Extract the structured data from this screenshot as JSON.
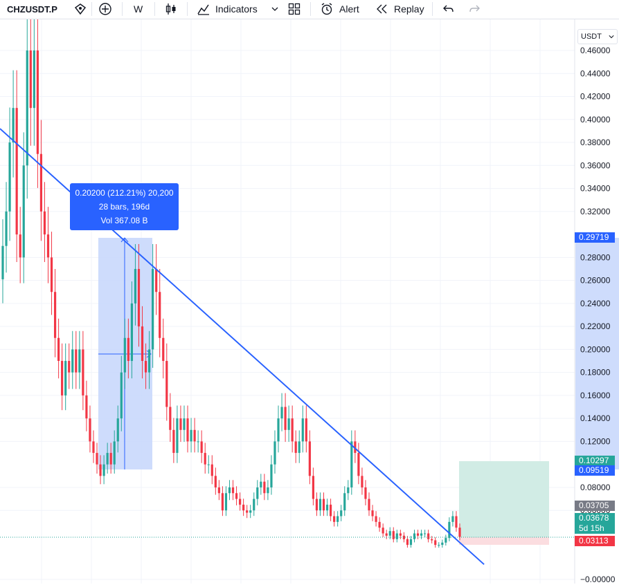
{
  "toolbar": {
    "symbol": "CHZUSDT.P",
    "interval": "W",
    "indicators_label": "Indicators",
    "alert_label": "Alert",
    "replay_label": "Replay"
  },
  "price_scale": {
    "unit": "USDT",
    "ticks": [
      "0.46000",
      "0.44000",
      "0.42000",
      "0.40000",
      "0.38000",
      "0.36000",
      "0.34000",
      "0.32000",
      "0.28000",
      "0.26000",
      "0.24000",
      "0.22000",
      "0.20000",
      "0.18000",
      "0.16000",
      "0.14000",
      "0.12000",
      "0.08000",
      "0.06000",
      "−0.00000"
    ]
  },
  "measure_tooltip": {
    "line1": "0.20200 (212.21%) 20,200",
    "line2": "28 bars, 196d",
    "line3": "Vol 367.08 B"
  },
  "price_labels": {
    "range_top": "0.29719",
    "target": "0.10297",
    "range_bottom": "0.09519",
    "prev_close": "0.03705",
    "last_price": "0.03678",
    "countdown": "5d 15h",
    "stop": "0.03113"
  },
  "colors": {
    "up": "#26a69a",
    "down": "#f23645",
    "trendline": "#2962ff",
    "measure_fill": "#c5d6fb",
    "target_zone": "#d1ece5",
    "stop_zone": "#fbdde0"
  },
  "chart_data": {
    "type": "candlestick",
    "interval": "W",
    "ylim": [
      0,
      0.48
    ],
    "candles_close_approx": [
      0.29,
      0.32,
      0.38,
      0.41,
      0.3,
      0.28,
      0.36,
      0.46,
      0.41,
      0.46,
      0.37,
      0.32,
      0.3,
      0.28,
      0.25,
      0.21,
      0.19,
      0.16,
      0.19,
      0.18,
      0.2,
      0.18,
      0.2,
      0.16,
      0.14,
      0.12,
      0.11,
      0.1,
      0.09,
      0.1,
      0.11,
      0.1,
      0.12,
      0.14,
      0.18,
      0.21,
      0.19,
      0.24,
      0.27,
      0.22,
      0.19,
      0.18,
      0.2,
      0.27,
      0.25,
      0.21,
      0.19,
      0.15,
      0.13,
      0.11,
      0.14,
      0.13,
      0.14,
      0.12,
      0.13,
      0.12,
      0.12,
      0.11,
      0.1,
      0.1,
      0.09,
      0.08,
      0.075,
      0.06,
      0.075,
      0.08,
      0.075,
      0.07,
      0.065,
      0.06,
      0.058,
      0.06,
      0.07,
      0.08,
      0.085,
      0.075,
      0.08,
      0.1,
      0.12,
      0.14,
      0.15,
      0.13,
      0.14,
      0.12,
      0.11,
      0.12,
      0.14,
      0.12,
      0.09,
      0.07,
      0.06,
      0.07,
      0.06,
      0.065,
      0.055,
      0.05,
      0.055,
      0.06,
      0.075,
      0.08,
      0.12,
      0.11,
      0.09,
      0.08,
      0.07,
      0.06,
      0.055,
      0.05,
      0.045,
      0.04,
      0.038,
      0.042,
      0.035,
      0.04,
      0.038,
      0.035,
      0.03,
      0.035,
      0.04,
      0.038,
      0.04,
      0.04,
      0.035,
      0.034,
      0.03,
      0.03,
      0.032,
      0.036,
      0.05,
      0.055,
      0.045,
      0.037
    ],
    "trendline": {
      "from": {
        "bar": 0,
        "price": 0.392
      },
      "to": {
        "bar": 134,
        "price": -0.005
      }
    },
    "measure": {
      "from_price": 0.095,
      "to_price": 0.297,
      "change": "0.20200 (212.21%) 20,200",
      "bars": "28 bars, 196d",
      "volume": "Vol 367.08 B"
    },
    "position": {
      "entry": 0.03678,
      "target": 0.10297,
      "stop": 0.03113
    },
    "last_price": 0.03678
  }
}
